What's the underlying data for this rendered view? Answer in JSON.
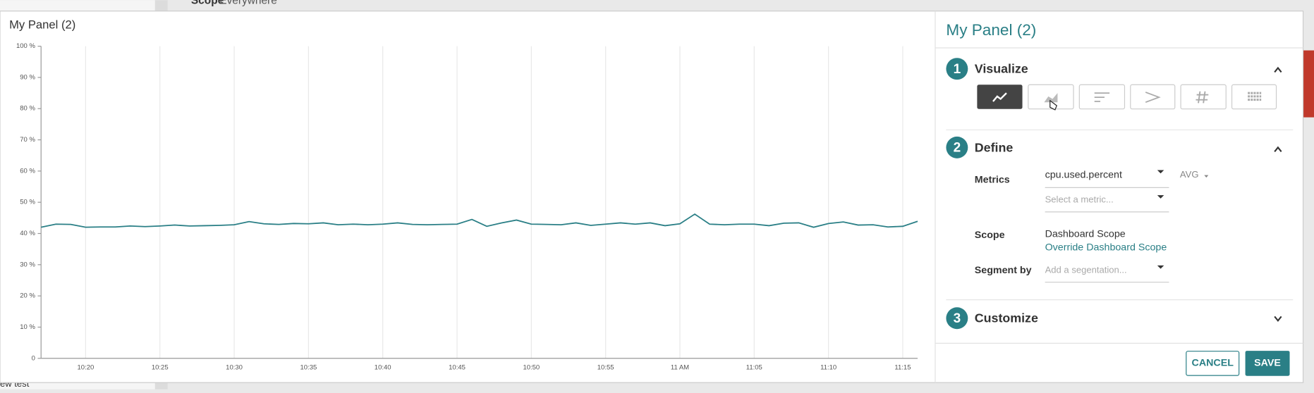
{
  "background": {
    "breadcrumb": [
      "Scope",
      "Everywhere"
    ],
    "footer_text": "ew test"
  },
  "chart_data": {
    "type": "line",
    "title": "My Panel (2)",
    "x": [
      "10:17",
      "10:18",
      "10:19",
      "10:20",
      "10:21",
      "10:22",
      "10:23",
      "10:24",
      "10:25",
      "10:26",
      "10:27",
      "10:28",
      "10:29",
      "10:30",
      "10:31",
      "10:32",
      "10:33",
      "10:34",
      "10:35",
      "10:36",
      "10:37",
      "10:38",
      "10:39",
      "10:40",
      "10:41",
      "10:42",
      "10:43",
      "10:44",
      "10:45",
      "10:46",
      "10:47",
      "10:48",
      "10:49",
      "10:50",
      "10:51",
      "10:52",
      "10:53",
      "10:54",
      "10:55",
      "10:56",
      "10:57",
      "10:58",
      "10:59",
      "11:00",
      "11:01",
      "11:02",
      "11:03",
      "11:04",
      "11:05",
      "11:06",
      "11:07",
      "11:08",
      "11:09",
      "11:10",
      "11:11",
      "11:12",
      "11:13",
      "11:14",
      "11:15",
      "11:16"
    ],
    "series": [
      {
        "color": "#2a7f86",
        "values": [
          42.0,
          43.0,
          42.9,
          42.0,
          42.1,
          42.1,
          42.4,
          42.2,
          42.4,
          42.7,
          42.4,
          42.5,
          42.6,
          42.8,
          43.8,
          43.1,
          42.9,
          43.2,
          43.1,
          43.4,
          42.8,
          43.0,
          42.8,
          43.0,
          43.4,
          42.9,
          42.8,
          42.9,
          43.0,
          44.5,
          42.3,
          43.4,
          44.3,
          43.0,
          42.9,
          42.8,
          43.4,
          42.6,
          43.0,
          43.4,
          43.0,
          43.4,
          42.5,
          43.1,
          46.2,
          43.0,
          42.8,
          43.0,
          43.0,
          42.5,
          43.3,
          43.4,
          42.0,
          43.2,
          43.7,
          42.7,
          42.8,
          42.1,
          42.3,
          43.9
        ]
      }
    ],
    "xlim": [
      "10:17",
      "11:16"
    ],
    "xticks": [
      "10:20",
      "10:25",
      "10:30",
      "10:35",
      "10:40",
      "10:45",
      "10:50",
      "10:55",
      {
        "value": "11:00",
        "label": "11 AM"
      },
      "11:05",
      "11:10",
      "11:15"
    ],
    "ylim": [
      0,
      100
    ],
    "yticks": [
      {
        "value": 0,
        "label": "0"
      },
      {
        "value": 10,
        "label": "10 %"
      },
      {
        "value": 20,
        "label": "20 %"
      },
      {
        "value": 30,
        "label": "30 %"
      },
      {
        "value": 40,
        "label": "40 %"
      },
      {
        "value": 50,
        "label": "50 %"
      },
      {
        "value": 60,
        "label": "60 %"
      },
      {
        "value": 70,
        "label": "70 %"
      },
      {
        "value": 80,
        "label": "80 %"
      },
      {
        "value": 90,
        "label": "90 %"
      },
      {
        "value": 100,
        "label": "100 %"
      }
    ],
    "grid": "x"
  },
  "editor": {
    "title": "My Panel (2)",
    "steps": [
      {
        "number": 1,
        "label": "Visualize"
      },
      {
        "number": 2,
        "label": "Define"
      },
      {
        "number": 3,
        "label": "Customize"
      }
    ],
    "define": {
      "metrics_label": "Metrics",
      "metric": "cpu.used.percent",
      "aggregation": "AVG",
      "metric_placeholder": "Select a metric...",
      "scope_label": "Scope",
      "scope": "Dashboard Scope",
      "scope_link": "Override Dashboard Scope",
      "segment_label": "Segment by",
      "segment_placeholder": "Add a segentation..."
    },
    "buttons": {
      "cancel": "CANCEL",
      "save": "SAVE"
    }
  }
}
